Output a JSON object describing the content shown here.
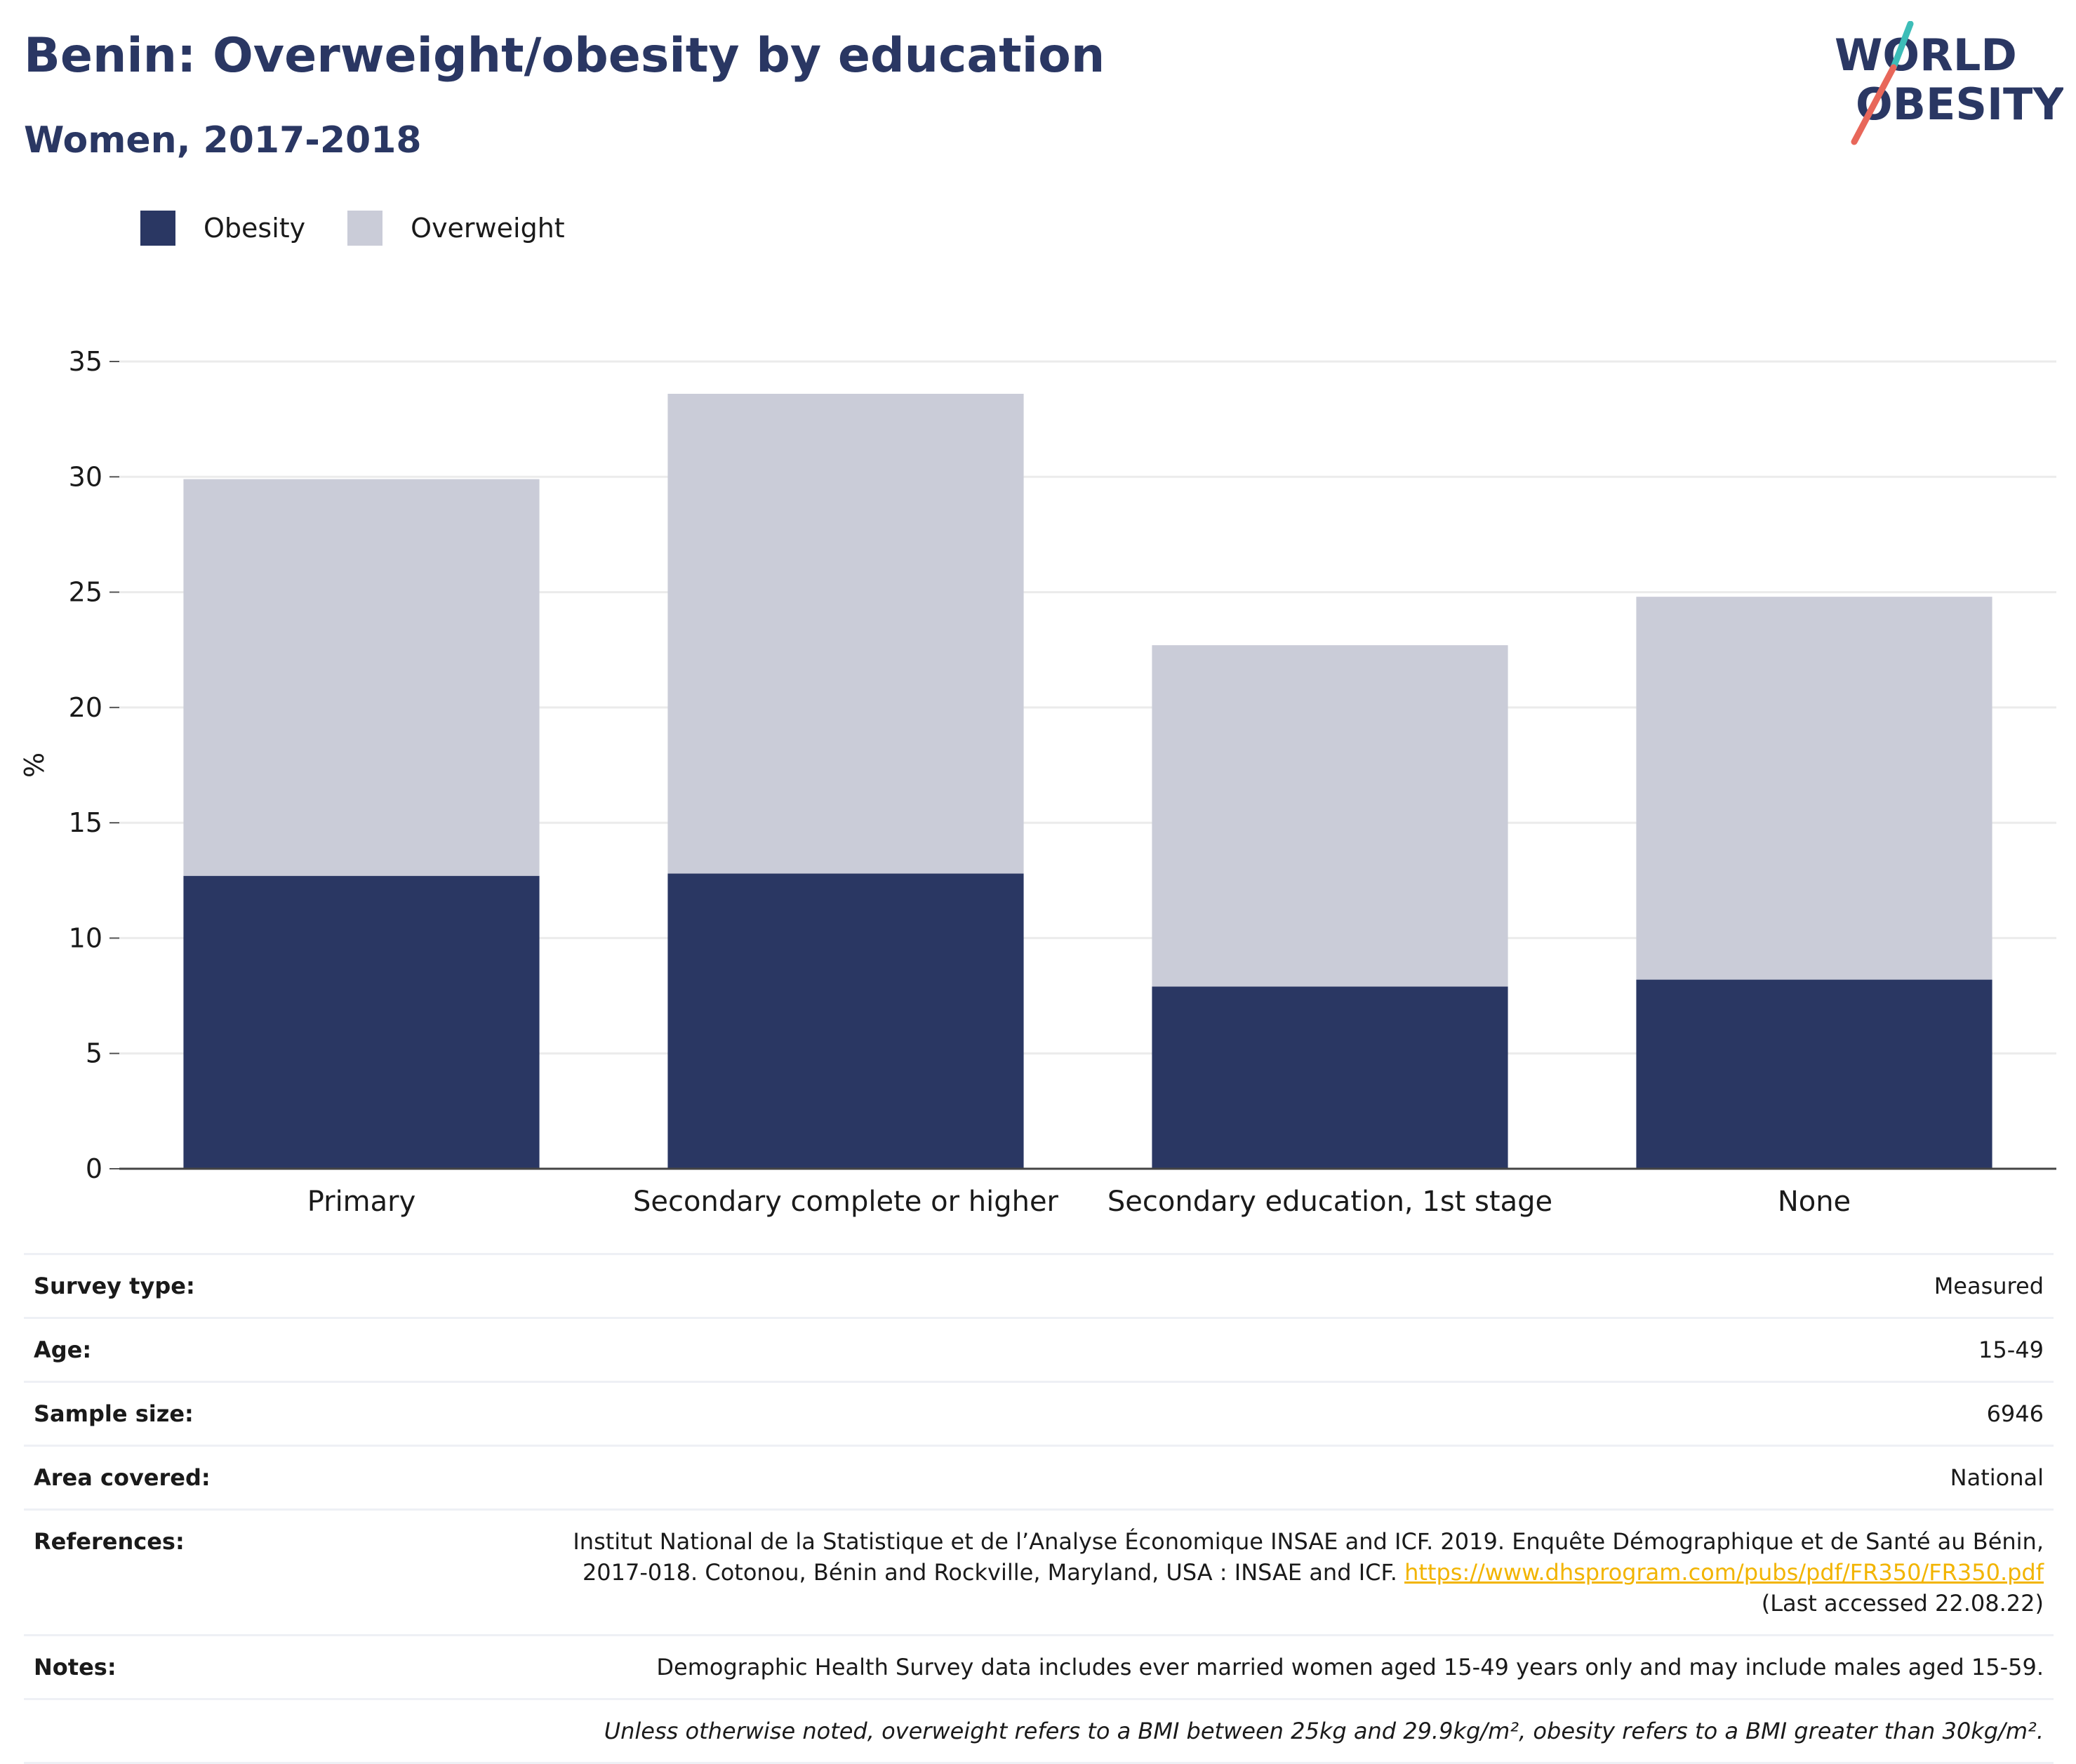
{
  "header": {
    "title": "Benin: Overweight/obesity by education",
    "subtitle": "Women, 2017-2018"
  },
  "logo": {
    "line1": "WORLD",
    "line2": "OBESITY",
    "colors": {
      "text": "#2a3763",
      "slash_top": "#3dbdb8",
      "slash_bottom": "#e8675a"
    }
  },
  "legend": [
    {
      "label": "Obesity",
      "color": "#2a3763"
    },
    {
      "label": "Overweight",
      "color": "#caccd8"
    }
  ],
  "chart_data": {
    "type": "bar",
    "stacked": true,
    "categories": [
      "Primary",
      "Secondary complete or higher",
      "Secondary education, 1st stage",
      "None"
    ],
    "series": [
      {
        "name": "Obesity",
        "color": "#2a3763",
        "values": [
          12.7,
          12.8,
          7.9,
          8.2
        ]
      },
      {
        "name": "Overweight",
        "color": "#caccd8",
        "values": [
          17.2,
          20.8,
          14.8,
          16.6
        ]
      }
    ],
    "ylabel": "%",
    "ylim": [
      0,
      35
    ],
    "yticks": [
      0,
      5,
      10,
      15,
      20,
      25,
      30,
      35
    ],
    "grid": true,
    "legend_position": "top-left"
  },
  "meta": {
    "survey_type": {
      "key": "Survey type:",
      "value": "Measured"
    },
    "age": {
      "key": "Age:",
      "value": "15-49"
    },
    "sample_size": {
      "key": "Sample size:",
      "value": "6946"
    },
    "area": {
      "key": "Area covered:",
      "value": "National"
    },
    "references": {
      "key": "References:",
      "line1": "Institut National de la Statistique et de l’Analyse Économique INSAE and ICF. 2019. Enquête Démographique et de Santé au Bénin,",
      "line2": "2017-018. Cotonou, Bénin and Rockville, Maryland, USA : INSAE and ICF.",
      "link": "https://www.dhsprogram.com/pubs/pdf/FR350/FR350.pdf",
      "accessed": "(Last accessed 22.08.22)"
    },
    "notes": {
      "key": "Notes:",
      "value": "Demographic Health Survey data includes ever married women aged 15-49 years only and may include males aged 15-59."
    },
    "footnote": "Unless otherwise noted, overweight refers to a BMI between 25kg and 29.9kg/m², obesity refers to a BMI greater than 30kg/m²."
  }
}
